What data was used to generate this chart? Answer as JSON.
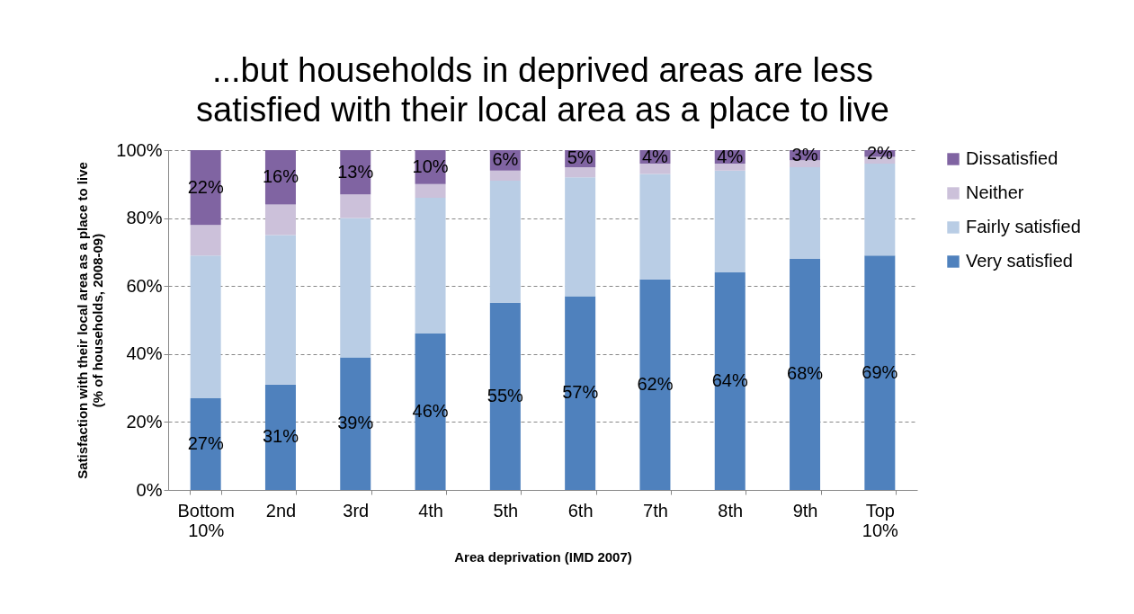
{
  "chart_data": {
    "type": "bar",
    "stacked": true,
    "title": "...but households in deprived areas are less satisfied with their local area as a place to live",
    "xlabel": "Area deprivation (IMD 2007)",
    "ylabel": "Satisfaction with their local area as a place to live (% of households, 2008-09)",
    "categories": [
      "Bottom 10%",
      "2nd",
      "3rd",
      "4th",
      "5th",
      "6th",
      "7th",
      "8th",
      "9th",
      "Top 10%"
    ],
    "series": [
      {
        "name": "Very satisfied",
        "color": "#4f81bd",
        "values": [
          27,
          31,
          39,
          46,
          55,
          57,
          62,
          64,
          68,
          69
        ],
        "value_labels": [
          "27%",
          "31%",
          "39%",
          "46%",
          "55%",
          "57%",
          "62%",
          "64%",
          "68%",
          "69%"
        ]
      },
      {
        "name": "Fairly satisfied",
        "color": "#b9cde5",
        "values": [
          42,
          44,
          41,
          40,
          36,
          35,
          31,
          30,
          27,
          27
        ]
      },
      {
        "name": "Neither",
        "color": "#ccc1da",
        "values": [
          9,
          9,
          7,
          4,
          3,
          3,
          3,
          2,
          2,
          2
        ]
      },
      {
        "name": "Dissatisfied",
        "color": "#8064a2",
        "values": [
          22,
          16,
          13,
          10,
          6,
          5,
          4,
          4,
          3,
          2
        ],
        "value_labels": [
          "22%",
          "16%",
          "13%",
          "10%",
          "6%",
          "5%",
          "4%",
          "4%",
          "3%",
          "2%"
        ]
      }
    ],
    "ylim": [
      0,
      100
    ],
    "yticks": [
      {
        "value": 0,
        "label": "0%"
      },
      {
        "value": 20,
        "label": "20%"
      },
      {
        "value": 40,
        "label": "40%"
      },
      {
        "value": 60,
        "label": "60%"
      },
      {
        "value": 80,
        "label": "80%"
      },
      {
        "value": 100,
        "label": "100%"
      }
    ],
    "grid": "y",
    "legend": "right"
  }
}
